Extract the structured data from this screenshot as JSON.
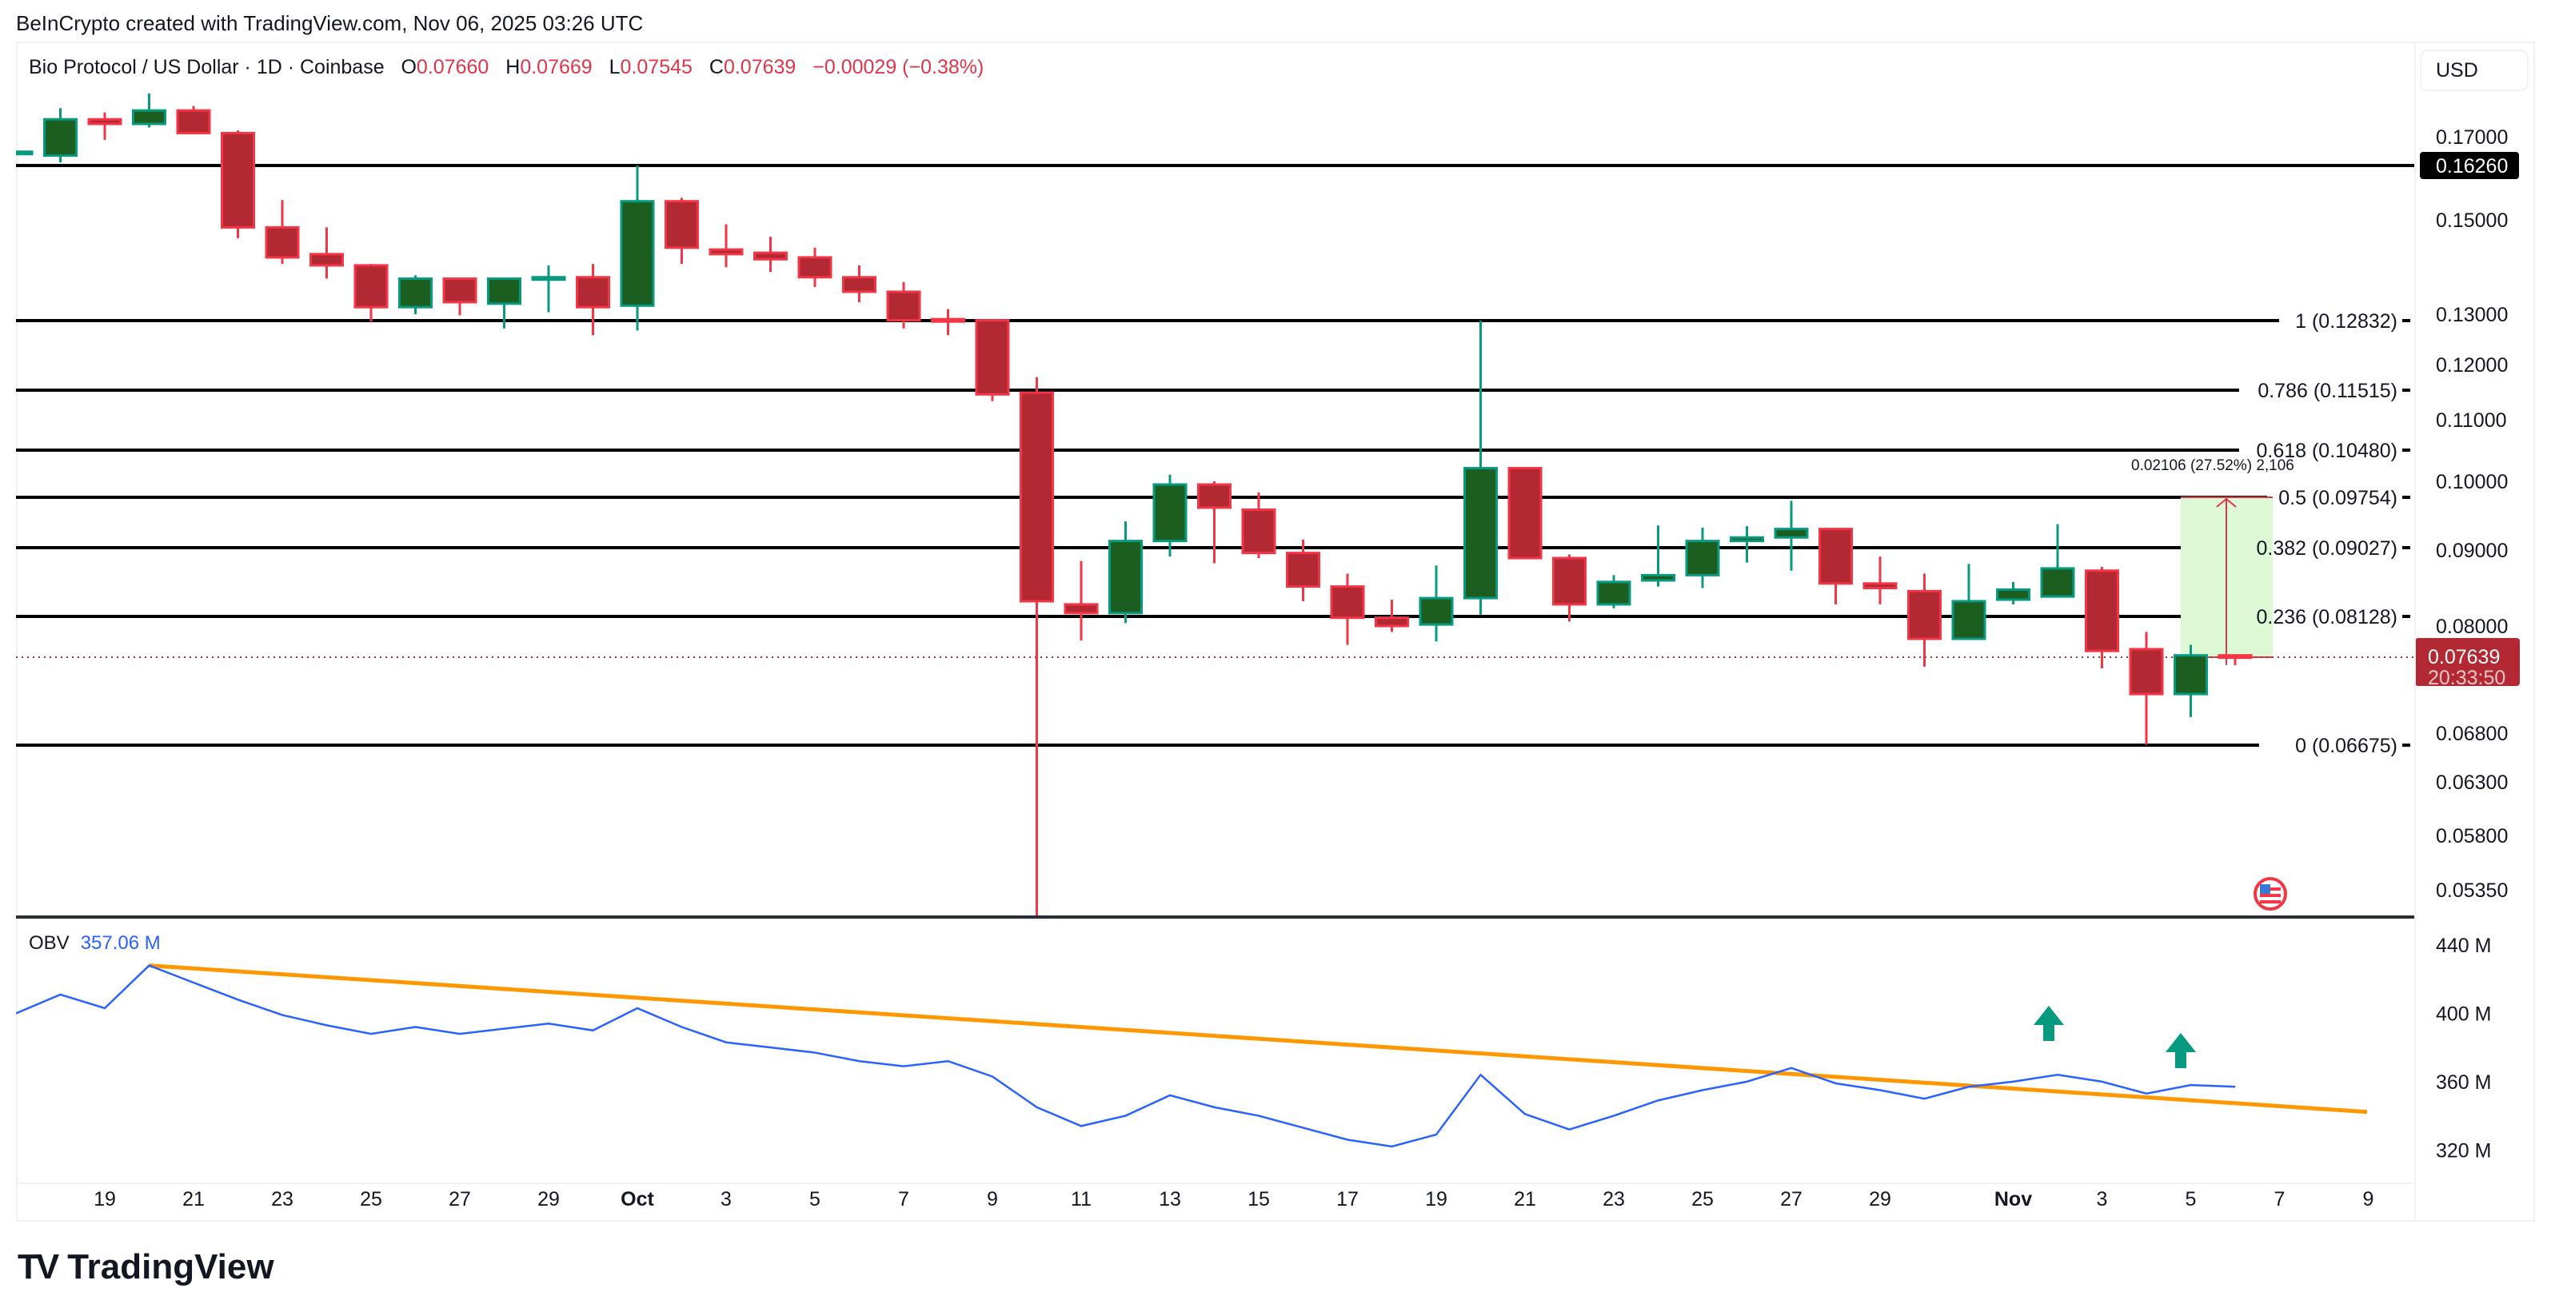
{
  "credit": "BeInCrypto created with TradingView.com, Nov 06, 2025 03:26 UTC",
  "legend": {
    "symbol": "Bio Protocol / US Dollar · 1D · Coinbase",
    "o_label": "O",
    "o": "0.07660",
    "h_label": "H",
    "h": "0.07669",
    "l_label": "L",
    "l": "0.07545",
    "c_label": "C",
    "c": "0.07639",
    "change": "−0.00029 (−0.38%)"
  },
  "currency_button": "USD",
  "colors": {
    "up_body": "#1b5e20",
    "up_border": "#089981",
    "down_body": "#b22833",
    "down_border": "#f23645",
    "fib_line": "#000000",
    "obv_line": "#2962ff",
    "trendline": "#ff9800",
    "measure_fill": "#dcf8d4",
    "measure_line": "#e0364a",
    "price_tag": "#b22833",
    "arrow": "#089981"
  },
  "price_axis": {
    "labels": [
      "0.17000",
      "0.15000",
      "0.13000",
      "0.12000",
      "0.11000",
      "0.10000",
      "0.09000",
      "0.08000",
      "0.06800",
      "0.06300",
      "0.05800",
      "0.05350"
    ],
    "highlight_label": "0.16260",
    "current_price": "0.07639",
    "countdown": "20:33:50"
  },
  "fib_levels": [
    {
      "label": "1 (0.12832)",
      "price": 0.12832
    },
    {
      "label": "0.786 (0.11515)",
      "price": 0.11515
    },
    {
      "label": "0.618 (0.10480)",
      "price": 0.1048
    },
    {
      "label": "0.5 (0.09754)",
      "price": 0.09754
    },
    {
      "label": "0.382 (0.09027)",
      "price": 0.09027
    },
    {
      "label": "0.236 (0.08128)",
      "price": 0.08128
    },
    {
      "label": "0 (0.06675)",
      "price": 0.06675
    }
  ],
  "resistance_line": {
    "price": 0.1626
  },
  "measure": {
    "label": "0.02106 (27.52%) 2,106",
    "from": 0.07639,
    "to": 0.09754
  },
  "obv": {
    "label": "OBV",
    "value": "357.06 M",
    "axis_labels": [
      "440 M",
      "400 M",
      "360 M",
      "320 M"
    ]
  },
  "date_axis": [
    {
      "label": "19",
      "bold": false
    },
    {
      "label": "21",
      "bold": false
    },
    {
      "label": "23",
      "bold": false
    },
    {
      "label": "25",
      "bold": false
    },
    {
      "label": "27",
      "bold": false
    },
    {
      "label": "29",
      "bold": false
    },
    {
      "label": "Oct",
      "bold": true
    },
    {
      "label": "3",
      "bold": false
    },
    {
      "label": "5",
      "bold": false
    },
    {
      "label": "7",
      "bold": false
    },
    {
      "label": "9",
      "bold": false
    },
    {
      "label": "11",
      "bold": false
    },
    {
      "label": "13",
      "bold": false
    },
    {
      "label": "15",
      "bold": false
    },
    {
      "label": "17",
      "bold": false
    },
    {
      "label": "19",
      "bold": false
    },
    {
      "label": "21",
      "bold": false
    },
    {
      "label": "23",
      "bold": false
    },
    {
      "label": "25",
      "bold": false
    },
    {
      "label": "27",
      "bold": false
    },
    {
      "label": "29",
      "bold": false
    },
    {
      "label": "Nov",
      "bold": true
    },
    {
      "label": "3",
      "bold": false
    },
    {
      "label": "5",
      "bold": false
    },
    {
      "label": "7",
      "bold": false
    },
    {
      "label": "9",
      "bold": false
    }
  ],
  "brand": {
    "name": "TradingView"
  },
  "chart_data": {
    "type": "candlestick",
    "title": "Bio Protocol / US Dollar · 1D · Coinbase",
    "ylabel": "USD",
    "yscale": "log",
    "ylim": [
      0.0535,
      0.17
    ],
    "x": [
      "Sep 17",
      "Sep 18",
      "Sep 19",
      "Sep 20",
      "Sep 21",
      "Sep 22",
      "Sep 23",
      "Sep 24",
      "Sep 25",
      "Sep 26",
      "Sep 27",
      "Sep 28",
      "Sep 29",
      "Sep 30",
      "Oct 1",
      "Oct 2",
      "Oct 3",
      "Oct 4",
      "Oct 5",
      "Oct 6",
      "Oct 7",
      "Oct 8",
      "Oct 9",
      "Oct 10",
      "Oct 11",
      "Oct 12",
      "Oct 13",
      "Oct 14",
      "Oct 15",
      "Oct 16",
      "Oct 17",
      "Oct 18",
      "Oct 19",
      "Oct 20",
      "Oct 21",
      "Oct 22",
      "Oct 23",
      "Oct 24",
      "Oct 25",
      "Oct 26",
      "Oct 27",
      "Oct 28",
      "Oct 29",
      "Oct 30",
      "Oct 31",
      "Nov 1",
      "Nov 2",
      "Nov 3",
      "Nov 4",
      "Nov 5",
      "Nov 6"
    ],
    "candles": [
      [
        0.166,
        0.1662,
        0.1655,
        0.1661
      ],
      [
        0.1651,
        0.183,
        0.1634,
        0.1778
      ],
      [
        0.1778,
        0.181,
        0.1692,
        0.1757
      ],
      [
        0.1757,
        0.19,
        0.1741,
        0.1819
      ],
      [
        0.1819,
        0.184,
        0.1716,
        0.1716
      ],
      [
        0.1716,
        0.1728,
        0.1459,
        0.1483
      ],
      [
        0.1483,
        0.1545,
        0.1403,
        0.1417
      ],
      [
        0.1424,
        0.1483,
        0.1372,
        0.14
      ],
      [
        0.14,
        0.1403,
        0.1281,
        0.1314
      ],
      [
        0.1314,
        0.1379,
        0.13,
        0.1372
      ],
      [
        0.1372,
        0.1372,
        0.1297,
        0.1324
      ],
      [
        0.1321,
        0.1372,
        0.1268,
        0.1372
      ],
      [
        0.1372,
        0.14,
        0.1304,
        0.1375
      ],
      [
        0.1375,
        0.1403,
        0.1255,
        0.1314
      ],
      [
        0.1317,
        0.1626,
        0.1264,
        0.1542
      ],
      [
        0.1542,
        0.155,
        0.1403,
        0.1438
      ],
      [
        0.1434,
        0.149,
        0.1396,
        0.1424
      ],
      [
        0.1427,
        0.1462,
        0.1386,
        0.1413
      ],
      [
        0.1417,
        0.1438,
        0.1355,
        0.1375
      ],
      [
        0.1375,
        0.14,
        0.1324,
        0.1345
      ],
      [
        0.1345,
        0.1365,
        0.1268,
        0.1284
      ],
      [
        0.1287,
        0.131,
        0.1255,
        0.1284
      ],
      [
        0.1284,
        0.1287,
        0.1132,
        0.1144
      ],
      [
        0.1147,
        0.1176,
        0.05,
        0.0832
      ],
      [
        0.0828,
        0.0885,
        0.0783,
        0.0817
      ],
      [
        0.0817,
        0.094,
        0.0804,
        0.0912
      ],
      [
        0.0912,
        0.101,
        0.0891,
        0.0995
      ],
      [
        0.0995,
        0.1,
        0.0882,
        0.096
      ],
      [
        0.0957,
        0.0983,
        0.0889,
        0.0896
      ],
      [
        0.0896,
        0.0914,
        0.0832,
        0.0851
      ],
      [
        0.0851,
        0.0868,
        0.0778,
        0.0811
      ],
      [
        0.0811,
        0.0834,
        0.0793,
        0.08
      ],
      [
        0.0802,
        0.0879,
        0.0782,
        0.0836
      ],
      [
        0.0836,
        0.1283,
        0.0815,
        0.102
      ],
      [
        0.102,
        0.102,
        0.0889,
        0.0889
      ],
      [
        0.0889,
        0.0894,
        0.0806,
        0.0828
      ],
      [
        0.0828,
        0.0866,
        0.0823,
        0.0857
      ],
      [
        0.0859,
        0.0934,
        0.0851,
        0.0866
      ],
      [
        0.0866,
        0.0931,
        0.0849,
        0.0912
      ],
      [
        0.0912,
        0.0933,
        0.0883,
        0.0917
      ],
      [
        0.0917,
        0.097,
        0.0872,
        0.0929
      ],
      [
        0.0929,
        0.0929,
        0.0828,
        0.0855
      ],
      [
        0.0855,
        0.0891,
        0.0828,
        0.0849
      ],
      [
        0.0845,
        0.0868,
        0.0753,
        0.0785
      ],
      [
        0.0785,
        0.0881,
        0.0785,
        0.0832
      ],
      [
        0.0834,
        0.0857,
        0.0828,
        0.0847
      ],
      [
        0.0838,
        0.0936,
        0.0838,
        0.0875
      ],
      [
        0.0872,
        0.0877,
        0.0751,
        0.0771
      ],
      [
        0.0773,
        0.0793,
        0.0668,
        0.0722
      ],
      [
        0.0722,
        0.0778,
        0.0697,
        0.0766
      ],
      [
        0.0766,
        0.07669,
        0.07545,
        0.07639
      ]
    ],
    "candle_format": [
      "open",
      "high",
      "low",
      "close"
    ],
    "obv_series_millions": [
      400,
      411,
      403,
      428,
      418,
      408,
      399,
      393,
      388,
      392,
      388,
      391,
      394,
      390,
      403,
      392,
      383,
      380,
      377,
      372,
      369,
      372,
      363,
      345,
      334,
      340,
      352,
      345,
      340,
      333,
      326,
      322,
      329,
      364,
      341,
      332,
      340,
      349,
      355,
      360,
      368,
      359,
      355,
      350,
      357,
      360,
      364,
      360,
      353,
      358,
      357
    ],
    "obv_trendline": {
      "start": "Sep 20",
      "start_value_m": 428,
      "end": "Nov 9",
      "end_value_m": 346
    },
    "annotations": [
      "Fibonacci retracement 0.12832 → 0.06675",
      "Horizontal resistance 0.16260",
      "Measure +0.02106 (27.52%) to 0.5 fib",
      "OBV descending trendline with two breakout up-arrows (Nov 2, Nov 5)"
    ]
  }
}
